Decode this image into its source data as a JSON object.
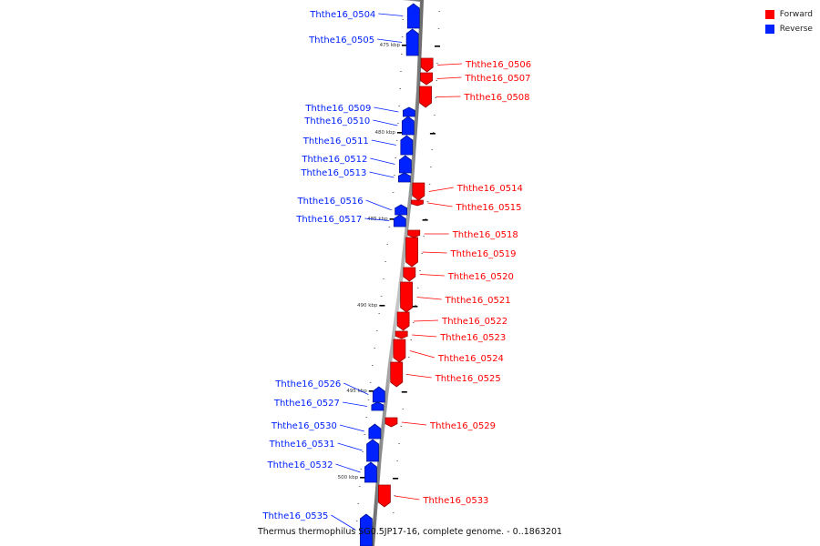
{
  "legend": {
    "forward_label": "Forward",
    "reverse_label": "Reverse",
    "forward_color": "#ff0000",
    "reverse_color": "#0022ff"
  },
  "caption": "Thermus thermophilus SG0.5JP17-16, complete genome. - 0..1863201",
  "backbone_color": "#888888",
  "scale_marks": [
    {
      "label": "475 kbp",
      "kbp": 475
    },
    {
      "label": "480 kbp",
      "kbp": 480
    },
    {
      "label": "485 kbp",
      "kbp": 485
    },
    {
      "label": "490 kbp",
      "kbp": 490
    },
    {
      "label": "495 kbp",
      "kbp": 495
    },
    {
      "label": "500 kbp",
      "kbp": 500
    }
  ],
  "genes": [
    {
      "name": "Ththe16_0504",
      "strand": "reverse"
    },
    {
      "name": "Ththe16_0505",
      "strand": "reverse"
    },
    {
      "name": "Ththe16_0506",
      "strand": "forward"
    },
    {
      "name": "Ththe16_0507",
      "strand": "forward"
    },
    {
      "name": "Ththe16_0508",
      "strand": "forward"
    },
    {
      "name": "Ththe16_0509",
      "strand": "reverse"
    },
    {
      "name": "Ththe16_0510",
      "strand": "reverse"
    },
    {
      "name": "Ththe16_0511",
      "strand": "reverse"
    },
    {
      "name": "Ththe16_0512",
      "strand": "reverse"
    },
    {
      "name": "Ththe16_0513",
      "strand": "reverse"
    },
    {
      "name": "Ththe16_0514",
      "strand": "forward"
    },
    {
      "name": "Ththe16_0515",
      "strand": "forward"
    },
    {
      "name": "Ththe16_0516",
      "strand": "reverse"
    },
    {
      "name": "Ththe16_0517",
      "strand": "reverse"
    },
    {
      "name": "Ththe16_0518",
      "strand": "forward"
    },
    {
      "name": "Ththe16_0519",
      "strand": "forward"
    },
    {
      "name": "Ththe16_0520",
      "strand": "forward"
    },
    {
      "name": "Ththe16_0521",
      "strand": "forward"
    },
    {
      "name": "Ththe16_0522",
      "strand": "forward"
    },
    {
      "name": "Ththe16_0523",
      "strand": "forward"
    },
    {
      "name": "Ththe16_0524",
      "strand": "forward"
    },
    {
      "name": "Ththe16_0525",
      "strand": "forward"
    },
    {
      "name": "Ththe16_0526",
      "strand": "reverse"
    },
    {
      "name": "Ththe16_0527",
      "strand": "reverse"
    },
    {
      "name": "Ththe16_0529",
      "strand": "forward"
    },
    {
      "name": "Ththe16_0530",
      "strand": "reverse"
    },
    {
      "name": "Ththe16_0531",
      "strand": "reverse"
    },
    {
      "name": "Ththe16_0532",
      "strand": "reverse"
    },
    {
      "name": "Ththe16_0533",
      "strand": "forward"
    },
    {
      "name": "Ththe16_0535",
      "strand": "reverse"
    }
  ]
}
